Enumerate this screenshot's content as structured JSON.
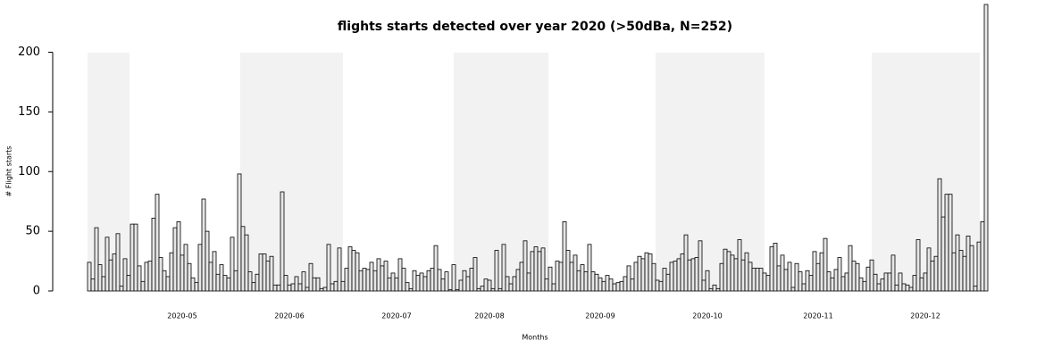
{
  "chart_data": {
    "type": "bar",
    "title": "flights starts detected over year 2020 (>50dBa, N=252)",
    "xlabel": "Months",
    "ylabel": "# Flight starts",
    "color": "#e6e6e6",
    "edgecolor": "#000000",
    "categories": [
      null,
      null,
      null,
      null,
      null,
      null,
      null,
      null,
      null,
      null,
      null,
      null,
      null,
      null,
      null,
      null,
      null,
      null,
      null,
      null,
      null,
      null,
      null,
      null,
      null,
      null,
      "2020-05",
      null,
      null,
      null,
      null,
      null,
      null,
      null,
      null,
      null,
      null,
      null,
      null,
      null,
      null,
      null,
      null,
      null,
      null,
      null,
      null,
      null,
      null,
      null,
      null,
      null,
      null,
      null,
      null,
      null,
      "2020-06",
      null,
      null,
      null,
      null,
      null,
      null,
      null,
      null,
      null,
      null,
      null,
      null,
      null,
      null,
      null,
      null,
      null,
      null,
      null,
      null,
      null,
      null,
      null,
      null,
      null,
      null,
      null,
      null,
      null,
      "2020-07",
      null,
      null,
      null,
      null,
      null,
      null,
      null,
      null,
      null,
      null,
      null,
      null,
      null,
      null,
      null,
      null,
      null,
      null,
      null,
      null,
      null,
      null,
      null,
      null,
      null,
      "2020-08",
      null,
      null,
      null,
      null,
      null,
      null,
      null,
      null,
      null,
      null,
      null,
      null,
      null,
      null,
      null,
      null,
      null,
      null,
      null,
      null,
      null,
      null,
      null,
      null,
      null,
      null,
      null,
      null,
      null,
      null,
      "2020-09",
      null,
      null,
      null,
      null,
      null,
      null,
      null,
      null,
      null,
      null,
      null,
      null,
      null,
      null,
      null,
      null,
      null,
      null,
      null,
      null,
      null,
      null,
      null,
      null,
      null,
      null,
      null,
      null,
      null,
      "2020-10",
      null,
      null,
      null,
      null,
      null,
      null,
      null,
      null,
      null,
      null,
      null,
      null,
      null,
      null,
      null,
      null,
      null,
      null,
      null,
      null,
      null,
      null,
      null,
      null,
      null,
      null,
      null,
      null,
      null,
      null,
      "2020-11",
      null,
      null,
      null,
      null,
      null,
      null,
      null,
      null,
      null,
      null,
      null,
      null,
      null,
      null,
      null,
      null,
      null,
      null,
      null,
      null,
      null,
      null,
      null,
      null,
      null,
      null,
      null,
      null,
      null,
      "2020-12",
      null,
      null,
      null,
      null,
      null,
      null,
      null,
      null,
      null,
      null,
      null,
      null,
      null,
      null,
      null,
      null,
      null
    ],
    "values": [
      24,
      10,
      53,
      22,
      12,
      45,
      26,
      31,
      48,
      4,
      27,
      13,
      56,
      56,
      21,
      8,
      24,
      25,
      61,
      81,
      28,
      17,
      12,
      32,
      53,
      58,
      30,
      39,
      23,
      11,
      7,
      39,
      77,
      50,
      24,
      33,
      14,
      22,
      13,
      11,
      45,
      17,
      98,
      54,
      47,
      16,
      7,
      14,
      31,
      31,
      25,
      29,
      5,
      5,
      83,
      13,
      5,
      6,
      12,
      6,
      16,
      3,
      23,
      11,
      11,
      2,
      3,
      39,
      6,
      8,
      36,
      8,
      19,
      37,
      34,
      32,
      17,
      19,
      18,
      24,
      17,
      27,
      21,
      25,
      11,
      15,
      11,
      27,
      19,
      7,
      2,
      17,
      13,
      15,
      12,
      17,
      19,
      38,
      18,
      10,
      16,
      1,
      22,
      1,
      9,
      17,
      12,
      19,
      28,
      2,
      4,
      10,
      9,
      2,
      34,
      2,
      39,
      12,
      6,
      12,
      18,
      24,
      42,
      15,
      33,
      37,
      33,
      36,
      10,
      20,
      6,
      25,
      24,
      58,
      34,
      24,
      30,
      17,
      22,
      16,
      39,
      16,
      14,
      11,
      8,
      13,
      10,
      6,
      7,
      8,
      12,
      21,
      10,
      24,
      29,
      27,
      32,
      31,
      23,
      9,
      8,
      19,
      14,
      24,
      25,
      27,
      31,
      47,
      26,
      27,
      28,
      42,
      9,
      17,
      2,
      5,
      2,
      23,
      35,
      33,
      30,
      27,
      43,
      26,
      32,
      24,
      19,
      19,
      19,
      15,
      13,
      37,
      40,
      21,
      30,
      18,
      24,
      3,
      23,
      16,
      6,
      17,
      13,
      33,
      23,
      32,
      44,
      16,
      11,
      18,
      28,
      12,
      15,
      38,
      25,
      23,
      11,
      8,
      20,
      26,
      14,
      6,
      10,
      15,
      15,
      30,
      5,
      15,
      6,
      5,
      3,
      13,
      43,
      11,
      15,
      36,
      25,
      29,
      94,
      62,
      81,
      81,
      32,
      47,
      34,
      29,
      46,
      38,
      4,
      41,
      58,
      240
    ],
    "ylim": [
      0,
      240
    ],
    "yticks": [
      0,
      50,
      100,
      150,
      200
    ]
  }
}
